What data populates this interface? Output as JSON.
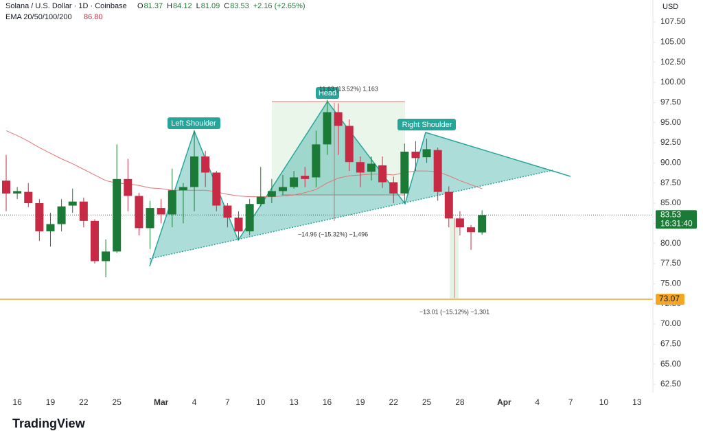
{
  "chart_data": {
    "type": "candlestick",
    "title": "Solana / U.S. Dollar · 1D · Coinbase",
    "header": [
      {
        "label": "O",
        "value": 81.37
      },
      {
        "label": "H",
        "value": 84.12
      },
      {
        "label": "L",
        "value": 81.09
      },
      {
        "label": "C",
        "value": 83.53
      }
    ],
    "change": "+2.16 (+2.65%)",
    "indicator": {
      "name": "EMA 20/50/100/200",
      "value": 86.8,
      "value_label": "86.80",
      "color": "#e57373"
    },
    "currency": "USD",
    "categories": [
      null,
      "16",
      null,
      null,
      "19",
      null,
      null,
      "22",
      null,
      null,
      "25",
      null,
      null,
      null,
      "Mar",
      null,
      null,
      "4",
      null,
      null,
      "7",
      null,
      null,
      "10",
      null,
      null,
      "13",
      null,
      null,
      "16",
      null,
      null,
      "19",
      null,
      null,
      "22",
      null,
      null,
      "25",
      null,
      null,
      "28",
      null,
      null,
      null,
      "Apr",
      null,
      null,
      "4",
      null,
      null,
      "7",
      null,
      null,
      "10",
      null,
      null,
      "13"
    ],
    "open": [
      87.8,
      86.2,
      86.4,
      85,
      81.5,
      82.4,
      84.7,
      85.2,
      82.8,
      77.8,
      79,
      88,
      85.9,
      81.9,
      84.4,
      83.6,
      86.6,
      87,
      90.8,
      88.8,
      84.7,
      83.2,
      81.5,
      84.9,
      85.8,
      86.5,
      87,
      88.4,
      88.2,
      92.3,
      96.3,
      94.6,
      90.1,
      88.9,
      89.7,
      87.6,
      86.2,
      91.4,
      90.7,
      91.6,
      86.4,
      83.1,
      82,
      81.37,
      null,
      null,
      null,
      null,
      null,
      null,
      null,
      null,
      null,
      null,
      null,
      null,
      null,
      null
    ],
    "high": [
      91,
      87,
      87.5,
      85.5,
      83.8,
      85.5,
      86.8,
      85.7,
      83,
      80.5,
      92.3,
      90.5,
      86.3,
      85.3,
      85.5,
      89.3,
      87.5,
      94,
      91.5,
      89,
      85,
      84,
      85.5,
      89.5,
      88,
      88.5,
      89,
      89.5,
      94,
      97.8,
      97.4,
      95.4,
      90.8,
      90.8,
      90.8,
      88.3,
      92.4,
      92.7,
      93,
      91.9,
      87.1,
      84,
      82.3,
      84.12,
      null,
      null,
      null,
      null,
      null,
      null,
      null,
      null,
      null,
      null,
      null,
      null,
      null,
      null
    ],
    "low": [
      84,
      85.5,
      84.5,
      80.3,
      79.6,
      81.5,
      83.8,
      82,
      77.5,
      75.8,
      78.8,
      84,
      81,
      79.3,
      82.5,
      82,
      82.5,
      84,
      87,
      84,
      82,
      80.4,
      81,
      84.6,
      85,
      86,
      86.8,
      87,
      87,
      91,
      91,
      89,
      87,
      87.8,
      86.9,
      85,
      85,
      89,
      90,
      85.3,
      82,
      81,
      79.2,
      81.09,
      null,
      null,
      null,
      null,
      null,
      null,
      null,
      null,
      null,
      null,
      null,
      null,
      null,
      null
    ],
    "close": [
      86.2,
      86.5,
      85,
      81.5,
      82.4,
      84.6,
      85.2,
      82.8,
      77.8,
      79,
      88,
      85.9,
      81.9,
      84.4,
      83.6,
      86.6,
      87,
      90.8,
      88.8,
      84.7,
      83.2,
      81.5,
      84.9,
      85.8,
      86.5,
      87,
      88.2,
      88,
      92.3,
      96.3,
      94.6,
      90.1,
      88.8,
      89.9,
      87.6,
      86.2,
      91.4,
      90.6,
      91.7,
      86.4,
      83.1,
      82,
      81.4,
      83.53,
      null,
      null,
      null,
      null,
      null,
      null,
      null,
      null,
      null,
      null,
      null,
      null,
      null,
      null
    ],
    "ema": [
      94,
      93.4,
      92.7,
      91.9,
      91.2,
      90.5,
      89.9,
      89.2,
      88.5,
      87.8,
      87.5,
      87.4,
      87.2,
      86.9,
      86.8,
      86.6,
      86.6,
      86.6,
      86.6,
      86.4,
      86.1,
      85.9,
      85.8,
      85.8,
      85.8,
      85.9,
      86,
      86.3,
      86.7,
      87.5,
      88.1,
      88.4,
      88.5,
      88.6,
      88.6,
      88.5,
      88.8,
      89,
      89,
      88.9,
      88.4,
      87.8,
      87.3,
      86.8,
      null,
      null,
      null,
      null,
      null,
      null,
      null,
      null,
      null,
      null,
      null,
      null,
      null,
      null
    ],
    "up_color": "#1b7a35",
    "down_color": "#c62a45",
    "ylim": [
      61.48,
      110.23
    ],
    "yticks": [
      {
        "value": 62.5,
        "label": "62.50"
      },
      {
        "value": 65,
        "label": "65.00"
      },
      {
        "value": 67.5,
        "label": "67.50"
      },
      {
        "value": 70,
        "label": "70.00"
      },
      {
        "value": 72.5,
        "label": "72.50"
      },
      {
        "value": 75,
        "label": "75.00"
      },
      {
        "value": 77.5,
        "label": "77.50"
      },
      {
        "value": 80,
        "label": "80.00"
      },
      {
        "value": 82.5,
        "label": "82.50"
      },
      {
        "value": 85,
        "label": "85.00"
      },
      {
        "value": 87.5,
        "label": "87.50"
      },
      {
        "value": 90,
        "label": "90.00"
      },
      {
        "value": 92.5,
        "label": "92.50"
      },
      {
        "value": 95,
        "label": "95.00"
      },
      {
        "value": 97.5,
        "label": "97.50"
      },
      {
        "value": 100,
        "label": "100.00"
      },
      {
        "value": 102.5,
        "label": "102.50"
      },
      {
        "value": 105,
        "label": "105.00"
      },
      {
        "value": 107.5,
        "label": "107.50"
      }
    ],
    "grid": false,
    "last_price": 83.53,
    "countdown": "16:31:40",
    "support": {
      "value": 73.07,
      "color": "#f5a623"
    },
    "annotations": [
      "Left Shoulder",
      "Head",
      "Right Shoulder",
      "11.63 (13.52%) 1,163",
      "−14.96 (−15.32%) −1,496",
      "−13.01 (−15.12%) −1,301"
    ],
    "branding": "TradingView"
  }
}
